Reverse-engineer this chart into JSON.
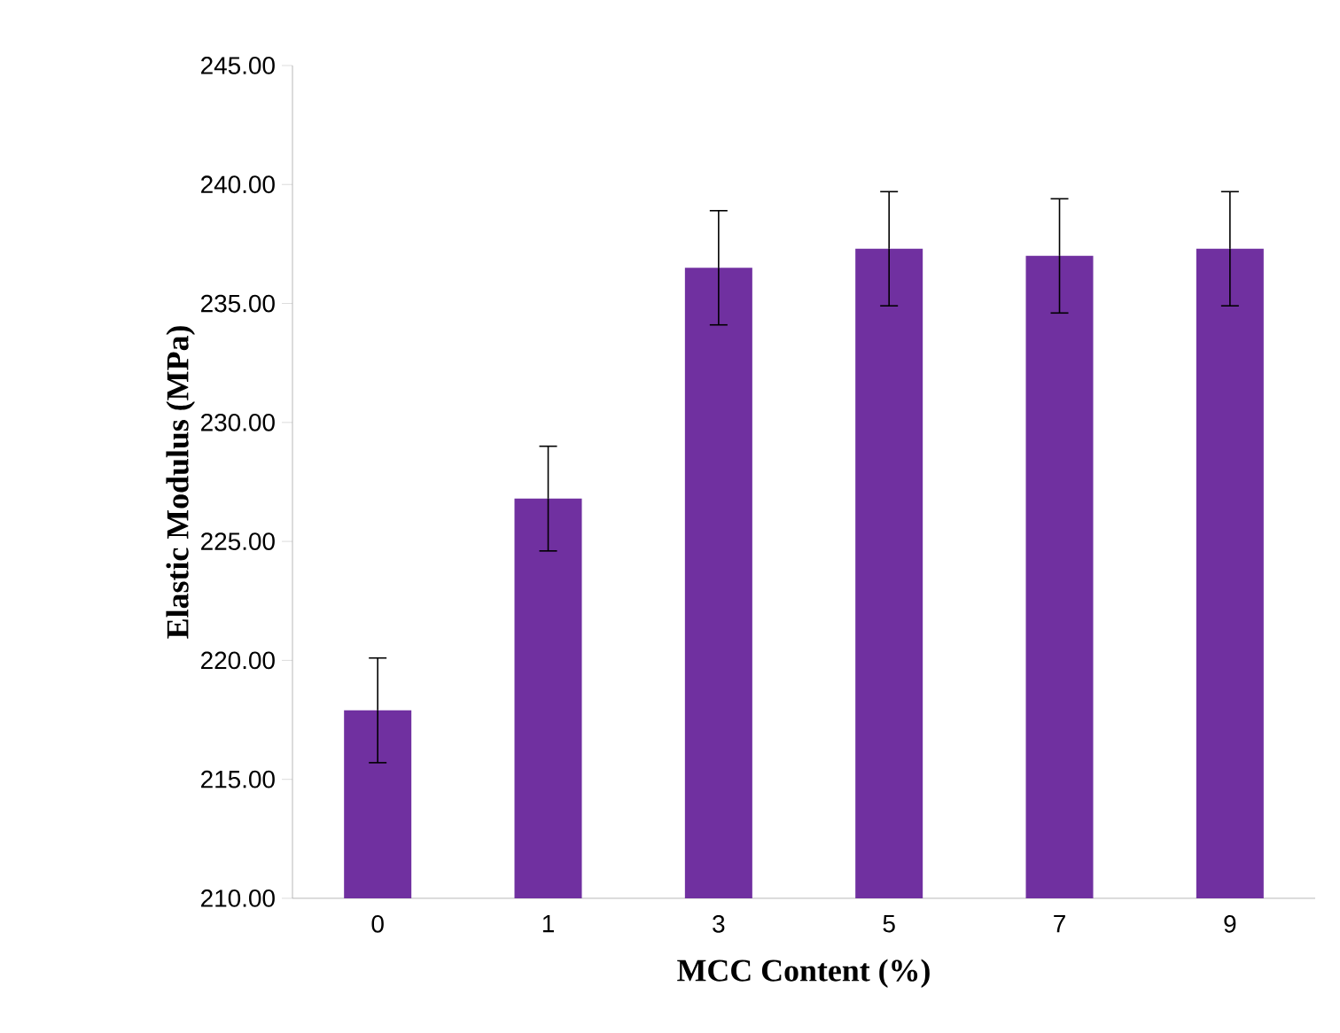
{
  "chart_data": {
    "type": "bar",
    "xlabel": "MCC Content (%)",
    "ylabel": "Elastic Modulus (MPa)",
    "categories": [
      "0",
      "1",
      "3",
      "5",
      "7",
      "9"
    ],
    "values": [
      217.9,
      226.8,
      236.5,
      237.3,
      237.0,
      237.3
    ],
    "errors": [
      2.2,
      2.2,
      2.4,
      2.4,
      2.4,
      2.4
    ],
    "color": "#7030a0",
    "ylim": [
      210,
      245
    ],
    "yticks": [
      {
        "value": 210,
        "label": "210.00"
      },
      {
        "value": 215,
        "label": "215.00"
      },
      {
        "value": 220,
        "label": "220.00"
      },
      {
        "value": 225,
        "label": "225.00"
      },
      {
        "value": 230,
        "label": "230.00"
      },
      {
        "value": 235,
        "label": "235.00"
      },
      {
        "value": 240,
        "label": "240.00"
      },
      {
        "value": 245,
        "label": "245.00"
      }
    ],
    "grid": false
  }
}
